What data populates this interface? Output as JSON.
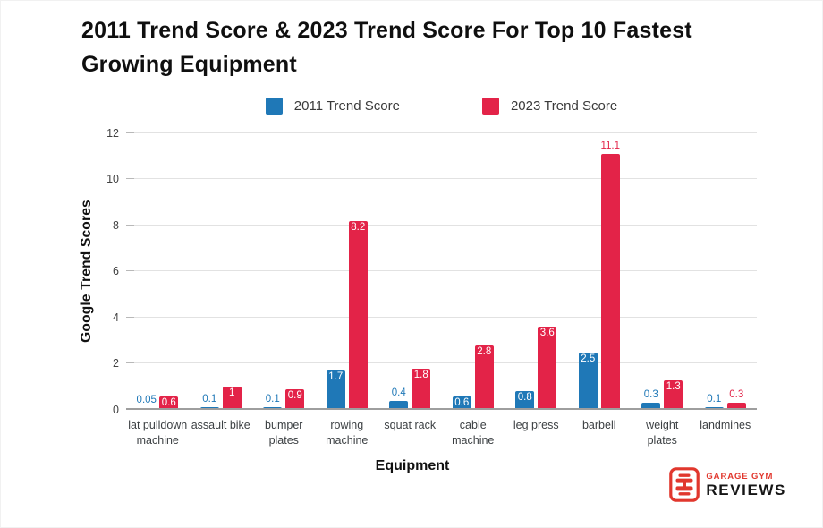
{
  "header": {
    "title": "2011 Trend Score & 2023 Trend Score For Top 10 Fastest Growing Equipment"
  },
  "legend": {
    "items": [
      {
        "label": "2011 Trend Score",
        "color": "#1f78b7"
      },
      {
        "label": "2023 Trend Score",
        "color": "#e32348"
      }
    ]
  },
  "axes": {
    "y_title": "Google Trend Scores",
    "x_title": "Equipment"
  },
  "chart_data": {
    "type": "bar",
    "title": "2011 Trend Score & 2023 Trend Score For Top 10 Fastest Growing Equipment",
    "xlabel": "Equipment",
    "ylabel": "Google Trend Scores",
    "ylim": [
      0,
      12
    ],
    "yticks": [
      0,
      2,
      4,
      6,
      8,
      10,
      12
    ],
    "grid": true,
    "legend_position": "top",
    "categories": [
      "lat pulldown machine",
      "assault bike",
      "bumper plates",
      "rowing machine",
      "squat rack",
      "cable machine",
      "leg press",
      "barbell",
      "weight plates",
      "landmines"
    ],
    "category_lines": [
      [
        "lat pulldown",
        "machine"
      ],
      [
        "assault bike"
      ],
      [
        "bumper",
        "plates"
      ],
      [
        "rowing",
        "machine"
      ],
      [
        "squat rack"
      ],
      [
        "cable",
        "machine"
      ],
      [
        "leg press"
      ],
      [
        "barbell"
      ],
      [
        "weight",
        "plates"
      ],
      [
        "landmines"
      ]
    ],
    "series": [
      {
        "name": "2011 Trend Score",
        "color": "#1f78b7",
        "values": [
          0.05,
          0.1,
          0.1,
          1.7,
          0.4,
          0.6,
          0.8,
          2.5,
          0.3,
          0.1
        ],
        "labels": [
          "0.05",
          "0.1",
          "0.1",
          "1.7",
          "0.4",
          "0.6",
          "0.8",
          "2.5",
          "0.3",
          "0.1"
        ],
        "label_positions": [
          "above",
          "above",
          "above",
          "inside",
          "above",
          "inside",
          "inside",
          "inside",
          "above",
          "above"
        ]
      },
      {
        "name": "2023 Trend Score",
        "color": "#e32348",
        "values": [
          0.6,
          1,
          0.9,
          8.2,
          1.8,
          2.8,
          3.6,
          11.1,
          1.3,
          0.3
        ],
        "labels": [
          "0.6",
          "1",
          "0.9",
          "8.2",
          "1.8",
          "2.8",
          "3.6",
          "11.1",
          "1.3",
          "0.3"
        ],
        "label_positions": [
          "inside",
          "inside",
          "inside",
          "inside",
          "inside",
          "inside",
          "inside",
          "above",
          "inside",
          "above"
        ]
      }
    ]
  },
  "logo": {
    "line1": "GARAGE GYM",
    "line2": "REVIEWS",
    "red": "#e1372d"
  }
}
